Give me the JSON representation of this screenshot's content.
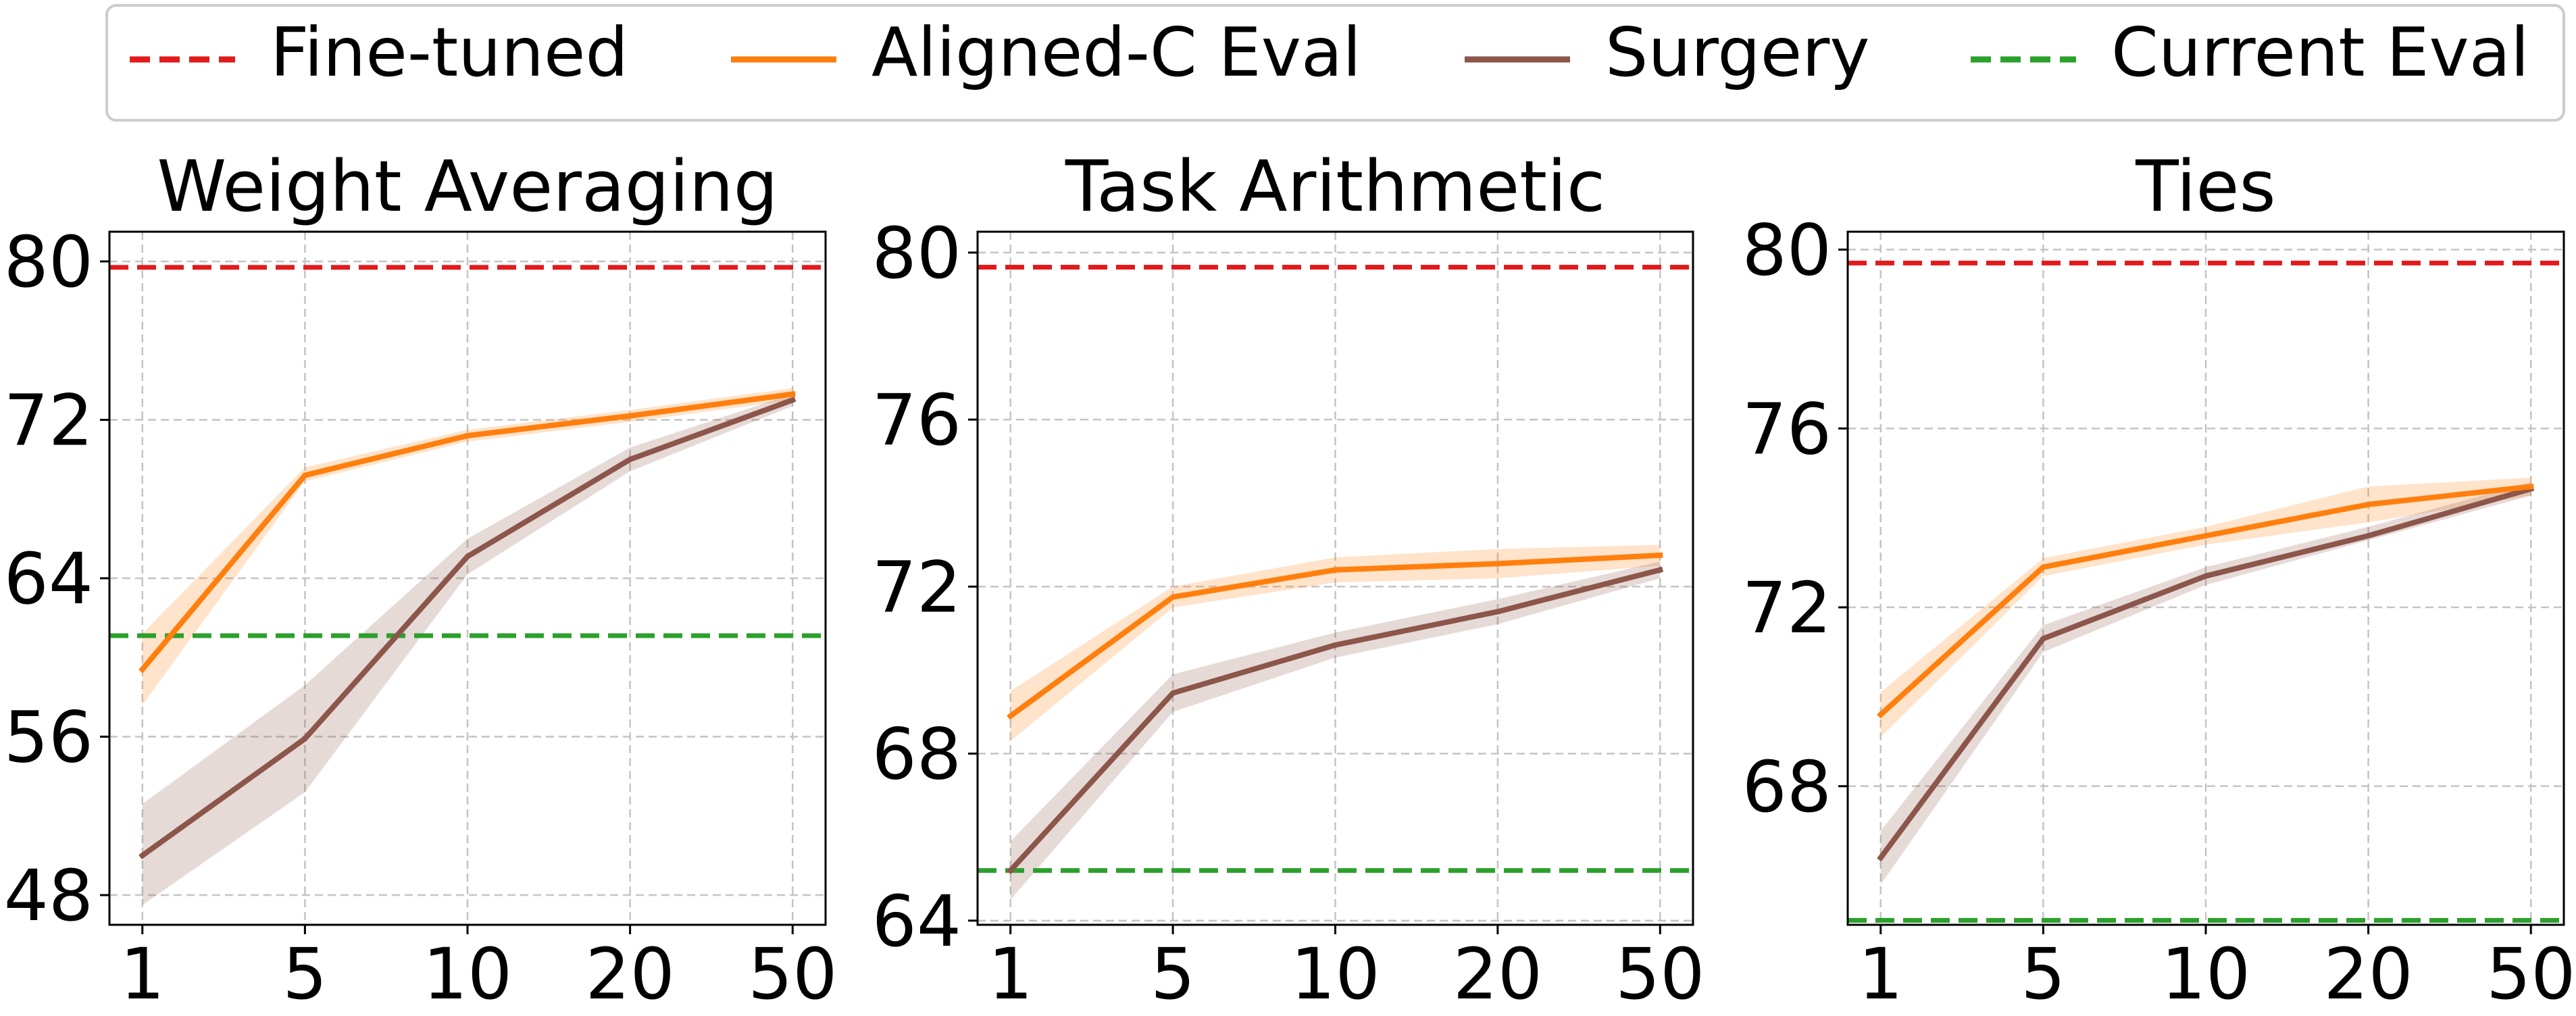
{
  "legend": {
    "entries": [
      {
        "label": "Fine-tuned",
        "color": "#e31a1c",
        "style": "dashed"
      },
      {
        "label": "Aligned-C Eval",
        "color": "#ff7f0e",
        "style": "solid"
      },
      {
        "label": "Surgery",
        "color": "#8c564b",
        "style": "solid"
      },
      {
        "label": "Current Eval",
        "color": "#2ca02c",
        "style": "dashed"
      }
    ]
  },
  "chart_data": [
    {
      "type": "line",
      "title": "Weight Averaging",
      "xlabel": "",
      "ylabel": "",
      "categories": [
        "1",
        "5",
        "10",
        "20",
        "50"
      ],
      "ylim": [
        46.5,
        81.5
      ],
      "yticks": [
        48,
        56,
        64,
        72,
        80
      ],
      "grid": true,
      "series": [
        {
          "name": "Aligned-C Eval",
          "color": "#ff7f0e",
          "values": [
            59.4,
            69.2,
            71.2,
            72.2,
            73.3
          ],
          "lower": [
            57.6,
            68.9,
            70.9,
            71.9,
            73.0
          ],
          "upper": [
            61.2,
            69.6,
            71.5,
            72.5,
            73.6
          ]
        },
        {
          "name": "Surgery",
          "color": "#8c564b",
          "values": [
            50.0,
            55.9,
            65.1,
            70.0,
            73.0
          ],
          "lower": [
            47.5,
            53.2,
            64.2,
            69.4,
            72.7
          ],
          "upper": [
            52.6,
            58.6,
            66.0,
            70.6,
            73.3
          ]
        }
      ],
      "references": [
        {
          "name": "Fine-tuned",
          "color": "#e31a1c",
          "value": 79.7
        },
        {
          "name": "Current Eval",
          "color": "#2ca02c",
          "value": 61.1
        }
      ]
    },
    {
      "type": "line",
      "title": "Task Arithmetic",
      "xlabel": "",
      "ylabel": "",
      "categories": [
        "1",
        "5",
        "10",
        "20",
        "50"
      ],
      "ylim": [
        63.9,
        80.5
      ],
      "yticks": [
        64,
        68,
        72,
        76,
        80
      ],
      "grid": true,
      "series": [
        {
          "name": "Aligned-C Eval",
          "color": "#ff7f0e",
          "values": [
            68.9,
            71.75,
            72.4,
            72.55,
            72.75
          ],
          "lower": [
            68.3,
            71.5,
            72.1,
            72.2,
            72.5
          ],
          "upper": [
            69.5,
            72.0,
            72.7,
            72.9,
            73.0
          ]
        },
        {
          "name": "Surgery",
          "color": "#8c564b",
          "values": [
            65.2,
            69.45,
            70.6,
            71.4,
            72.4
          ],
          "lower": [
            64.5,
            69.0,
            70.3,
            71.1,
            72.2
          ],
          "upper": [
            65.9,
            69.9,
            70.9,
            71.7,
            72.6
          ]
        }
      ],
      "references": [
        {
          "name": "Fine-tuned",
          "color": "#e31a1c",
          "value": 79.65
        },
        {
          "name": "Current Eval",
          "color": "#2ca02c",
          "value": 65.2
        }
      ]
    },
    {
      "type": "line",
      "title": "Ties",
      "xlabel": "",
      "ylabel": "",
      "categories": [
        "1",
        "5",
        "10",
        "20",
        "50"
      ],
      "ylim": [
        64.9,
        80.4
      ],
      "yticks": [
        68,
        72,
        76,
        80
      ],
      "grid": true,
      "series": [
        {
          "name": "Aligned-C Eval",
          "color": "#ff7f0e",
          "values": [
            69.6,
            72.9,
            73.6,
            74.3,
            74.7
          ],
          "lower": [
            69.1,
            72.7,
            73.4,
            73.9,
            74.5
          ],
          "upper": [
            70.1,
            73.1,
            73.8,
            74.7,
            74.9
          ]
        },
        {
          "name": "Surgery",
          "color": "#8c564b",
          "values": [
            66.4,
            71.3,
            72.7,
            73.6,
            74.65
          ],
          "lower": [
            65.8,
            71.0,
            72.5,
            73.5,
            74.5
          ],
          "upper": [
            67.0,
            71.6,
            72.9,
            73.8,
            74.8
          ]
        }
      ],
      "references": [
        {
          "name": "Fine-tuned",
          "color": "#e31a1c",
          "value": 79.7
        },
        {
          "name": "Current Eval",
          "color": "#2ca02c",
          "value": 65.0
        }
      ]
    }
  ]
}
